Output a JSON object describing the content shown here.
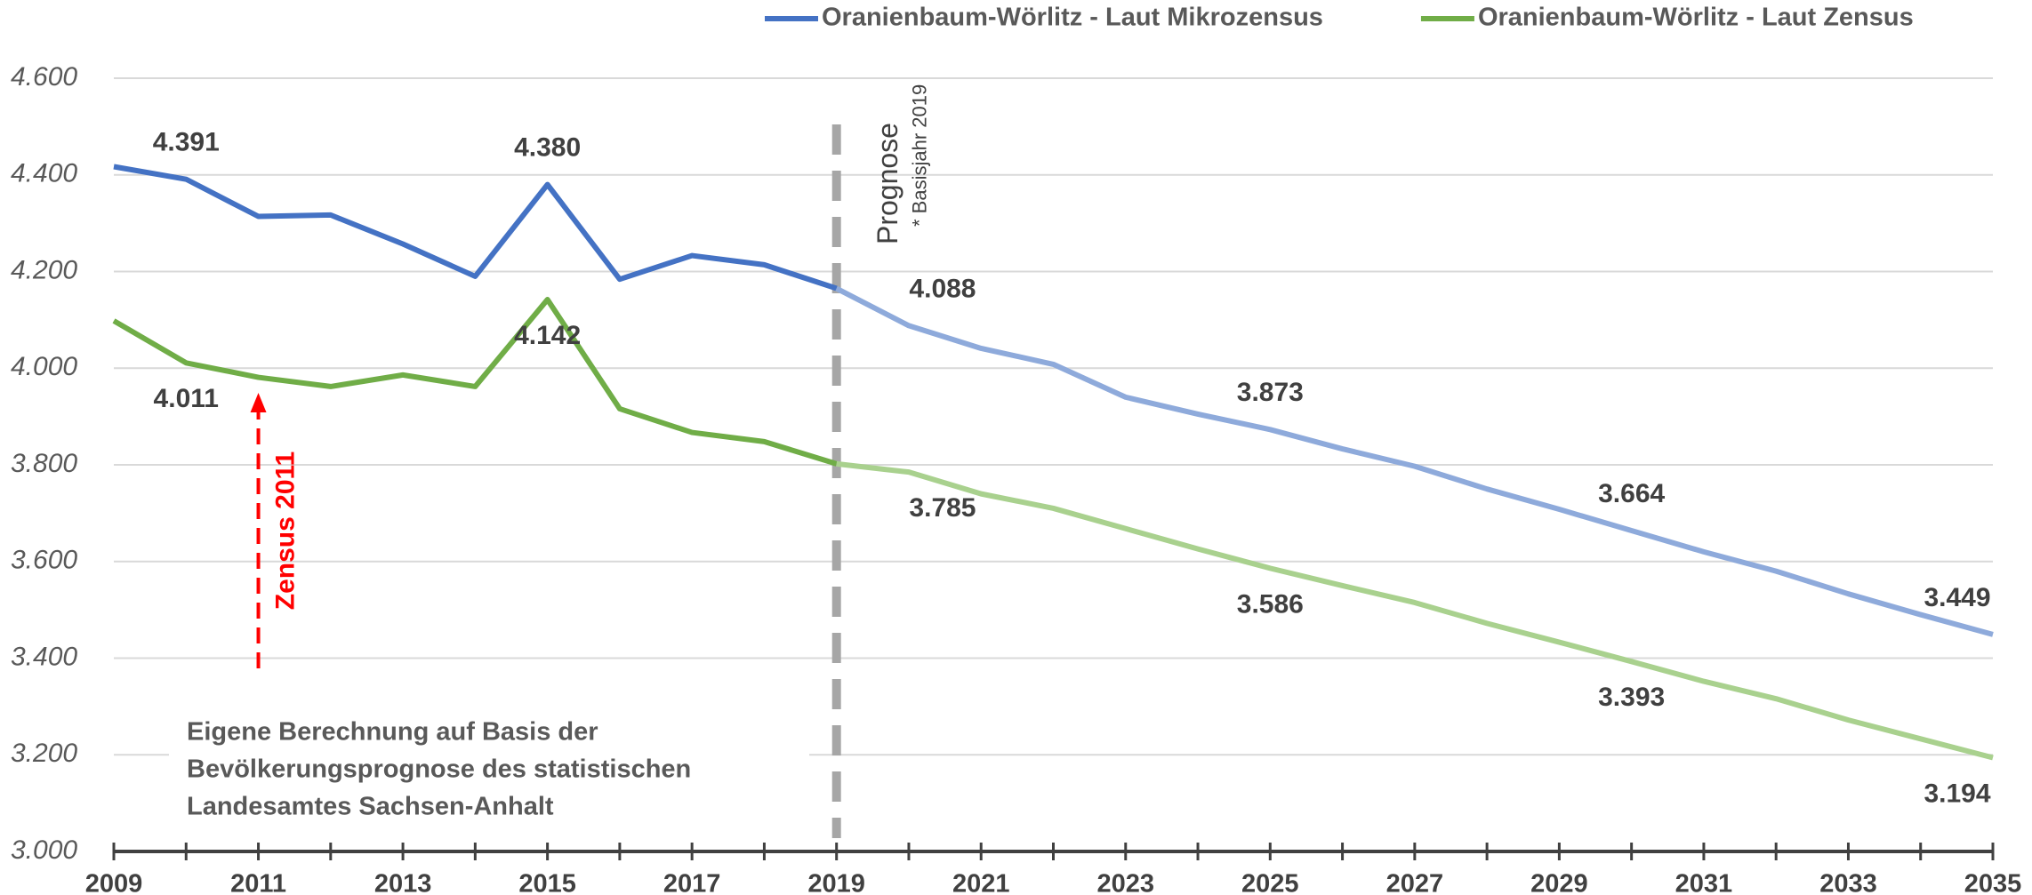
{
  "chart_data": {
    "type": "line",
    "x": [
      2009,
      2010,
      2011,
      2012,
      2013,
      2014,
      2015,
      2016,
      2017,
      2018,
      2019,
      2020,
      2021,
      2022,
      2023,
      2024,
      2025,
      2026,
      2027,
      2028,
      2029,
      2030,
      2031,
      2032,
      2033,
      2034,
      2035
    ],
    "series": [
      {
        "name": "Oranienbaum-Wörlitz - Laut Mikrozensus",
        "color": "#4472c4",
        "forecast_color": "#8eaadb",
        "values": [
          4417,
          4391,
          4314,
          4317,
          4257,
          4190,
          4380,
          4184,
          4233,
          4214,
          4165,
          4088,
          4041,
          4008,
          3940,
          3905,
          3873,
          3833,
          3797,
          3750,
          3708,
          3664,
          3620,
          3580,
          3533,
          3490,
          3449
        ],
        "value_labels": [
          null,
          "4.391",
          null,
          null,
          null,
          null,
          "4.380",
          null,
          null,
          null,
          null,
          "4.088",
          null,
          null,
          null,
          null,
          "3.873",
          null,
          null,
          null,
          null,
          "3.664",
          null,
          null,
          null,
          null,
          "3.449"
        ]
      },
      {
        "name": "Oranienbaum-Wörlitz - Laut Zensus",
        "color": "#70ad47",
        "forecast_color": "#a9d18e",
        "values": [
          4098,
          4011,
          3981,
          3962,
          3986,
          3962,
          4142,
          3916,
          3867,
          3848,
          3802,
          3785,
          3740,
          3710,
          3668,
          3626,
          3586,
          3550,
          3515,
          3472,
          3433,
          3393,
          3352,
          3316,
          3272,
          3233,
          3194
        ],
        "value_labels": [
          null,
          "4.011",
          null,
          null,
          null,
          null,
          "4.142",
          null,
          null,
          null,
          null,
          "3.785",
          null,
          null,
          null,
          null,
          "3.586",
          null,
          null,
          null,
          null,
          "3.393",
          null,
          null,
          null,
          null,
          "3.194"
        ]
      }
    ],
    "xlim": [
      2009,
      2035
    ],
    "xticks": [
      2009,
      2011,
      2013,
      2015,
      2017,
      2019,
      2021,
      2023,
      2025,
      2027,
      2029,
      2031,
      2033,
      2035
    ],
    "ylim": [
      3000,
      4600
    ],
    "yticks": [
      {
        "value": 3000,
        "label": "3.000"
      },
      {
        "value": 3200,
        "label": "3.200"
      },
      {
        "value": 3400,
        "label": "3.400"
      },
      {
        "value": 3600,
        "label": "3.600"
      },
      {
        "value": 3800,
        "label": "3.800"
      },
      {
        "value": 4000,
        "label": "4.000"
      },
      {
        "value": 4200,
        "label": "4.200"
      },
      {
        "value": 4400,
        "label": "4.400"
      },
      {
        "value": 4600,
        "label": "4.600"
      }
    ],
    "grid": true,
    "legend": "top",
    "forecast": {
      "label": "Prognose",
      "note": "* Basisjahr 2019",
      "x": 2019
    },
    "census": {
      "label": "Zensus 2011",
      "x": 2011,
      "color": "#ff0000"
    },
    "source_note": [
      "Eigene Berechnung auf Basis der",
      "Bevölkerungsprognose des statistischen",
      "Landesamtes Sachsen-Anhalt"
    ]
  }
}
